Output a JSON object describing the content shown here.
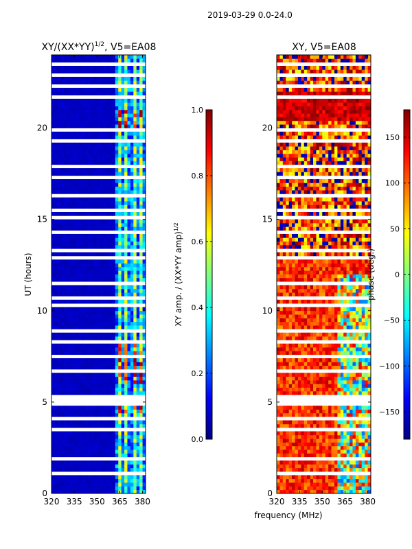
{
  "suptitle": "2019-03-29 0.0-24.0",
  "colors": {
    "jet": [
      "#00007f",
      "#0000ff",
      "#007fff",
      "#00ffff",
      "#7fff7f",
      "#ffff00",
      "#ff7f00",
      "#ff0000",
      "#7f0000"
    ]
  },
  "chart_data": [
    {
      "type": "heatmap",
      "title_text": "XY/(XX*YY)",
      "title_exp": "1/2",
      "title_suffix": ", V5=EA08",
      "xlabel": "",
      "ylabel": "UT (hours)",
      "xlim": [
        320,
        382
      ],
      "ylim": [
        0,
        24
      ],
      "xticks": [
        320,
        335,
        350,
        365,
        380
      ],
      "yticks": [
        0,
        5,
        10,
        15,
        20
      ],
      "colorbar": {
        "label_text": "XY amp. / (XX*YY amp)",
        "label_exp": "1/2",
        "range": [
          0.0,
          1.0
        ],
        "ticks": [
          "0.0",
          "0.2",
          "0.4",
          "0.6",
          "0.8",
          "1.0"
        ],
        "tick_values": [
          0.0,
          0.2,
          0.4,
          0.6,
          0.8,
          1.0
        ]
      },
      "flagged_hour_bands": [
        [
          23.4,
          23.6
        ],
        [
          22.8,
          22.95
        ],
        [
          22.3,
          22.5
        ],
        [
          21.6,
          21.9
        ],
        [
          19.9,
          20.1
        ],
        [
          19.3,
          19.45
        ],
        [
          18.6,
          18.7
        ],
        [
          17.9,
          18.0
        ],
        [
          17.3,
          17.4
        ],
        [
          16.2,
          16.35
        ],
        [
          15.5,
          15.7
        ],
        [
          15.1,
          15.3
        ],
        [
          14.3,
          14.4
        ],
        [
          13.3,
          13.45
        ],
        [
          12.8,
          12.95
        ],
        [
          12.2,
          12.3
        ],
        [
          11.4,
          11.6
        ],
        [
          10.7,
          10.8
        ],
        [
          10.2,
          10.35
        ],
        [
          9.6,
          9.7
        ],
        [
          8.8,
          8.95
        ],
        [
          8.3,
          8.45
        ],
        [
          7.5,
          7.6
        ],
        [
          6.7,
          6.8
        ],
        [
          6.0,
          6.1
        ],
        [
          5.1,
          5.35
        ],
        [
          4.8,
          4.95
        ],
        [
          4.1,
          4.25
        ],
        [
          3.5,
          3.6
        ],
        [
          2.8,
          2.9
        ],
        [
          1.8,
          2.0
        ],
        [
          1.1,
          1.25
        ],
        [
          0.6,
          0.7
        ]
      ],
      "rfi_channels_mhz": [
        [
          364,
          367
        ],
        [
          368,
          371
        ],
        [
          374,
          377
        ],
        [
          378,
          381
        ]
      ],
      "background_value": 0.05
    },
    {
      "type": "heatmap",
      "title_text": "XY, V5=EA08",
      "xlabel": "frequency (MHz)",
      "ylabel": "",
      "xlim": [
        320,
        382
      ],
      "ylim": [
        0,
        24
      ],
      "xticks": [
        320,
        335,
        350,
        365,
        380
      ],
      "yticks": [
        0,
        5,
        10,
        15,
        20
      ],
      "colorbar": {
        "label_text": "phase (deg.)",
        "range": [
          -180,
          180
        ],
        "ticks": [
          "150",
          "100",
          "50",
          "0",
          "−50",
          "−100",
          "−150"
        ],
        "tick_values": [
          150,
          100,
          50,
          0,
          -50,
          -100,
          -150
        ]
      },
      "flagged_hour_bands": [
        [
          23.4,
          23.6
        ],
        [
          22.8,
          22.95
        ],
        [
          22.3,
          22.5
        ],
        [
          21.6,
          21.9
        ],
        [
          19.9,
          20.1
        ],
        [
          19.3,
          19.45
        ],
        [
          18.6,
          18.7
        ],
        [
          17.9,
          18.0
        ],
        [
          17.3,
          17.4
        ],
        [
          16.2,
          16.35
        ],
        [
          15.5,
          15.7
        ],
        [
          15.1,
          15.3
        ],
        [
          14.3,
          14.4
        ],
        [
          13.3,
          13.45
        ],
        [
          12.8,
          12.95
        ],
        [
          12.2,
          12.3
        ],
        [
          11.4,
          11.6
        ],
        [
          10.7,
          10.8
        ],
        [
          10.2,
          10.35
        ],
        [
          9.6,
          9.7
        ],
        [
          8.8,
          8.95
        ],
        [
          8.3,
          8.45
        ],
        [
          7.5,
          7.6
        ],
        [
          6.7,
          6.8
        ],
        [
          6.0,
          6.1
        ],
        [
          5.1,
          5.35
        ],
        [
          4.8,
          4.95
        ],
        [
          4.1,
          4.25
        ],
        [
          3.5,
          3.6
        ],
        [
          2.8,
          2.9
        ],
        [
          1.8,
          2.0
        ],
        [
          1.1,
          1.25
        ],
        [
          0.6,
          0.7
        ]
      ],
      "dominant_phase_deg": 120
    }
  ]
}
